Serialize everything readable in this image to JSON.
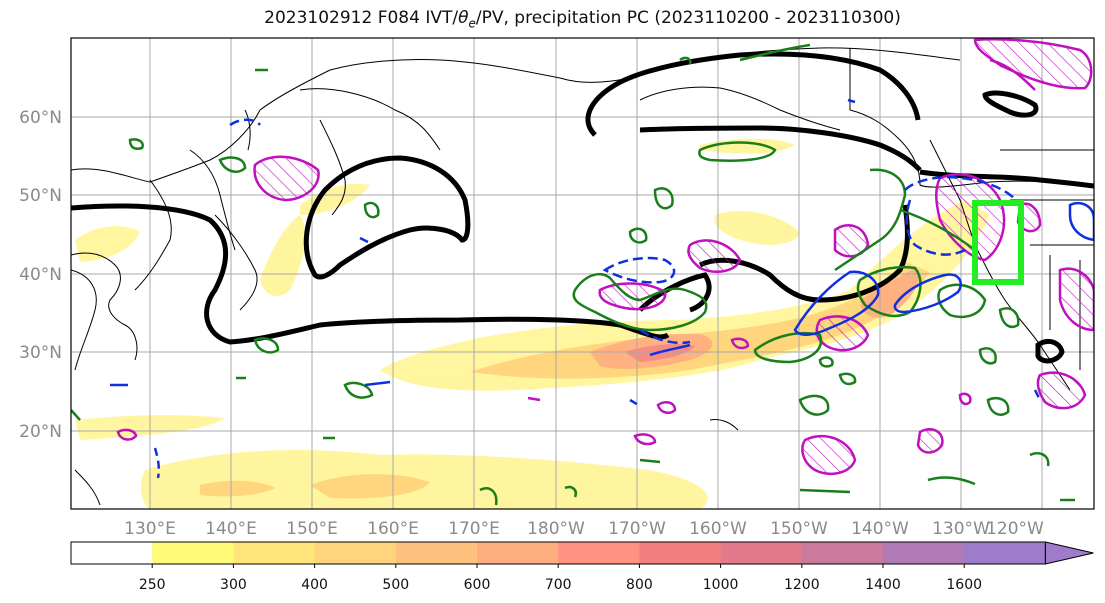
{
  "title": {
    "prefix": "2023102912 F084 IVT/",
    "theta": "θ",
    "theta_sub": "e",
    "suffix": "/PV, precipitation PC (2023110200 - 2023110300)"
  },
  "map": {
    "lat_labels": [
      "60°N",
      "50°N",
      "40°N",
      "30°N",
      "20°N"
    ],
    "lon_labels": [
      "130°E",
      "140°E",
      "150°E",
      "160°E",
      "170°E",
      "180°W",
      "170°W",
      "160°W",
      "150°W",
      "140°W",
      "130°W",
      "120°W"
    ],
    "colors": {
      "theta_e_contour": "#000000",
      "precip_contour": "#1a7f1a",
      "pv_contour": "#c010c0",
      "ivt_outline": "#1030e0",
      "highlight_box": "#22ee22",
      "coastline": "#000000",
      "gridline": "#a8a8a8"
    }
  },
  "colorbar": {
    "ticks": [
      "250",
      "300",
      "400",
      "500",
      "600",
      "700",
      "800",
      "1000",
      "1200",
      "1400",
      "1600"
    ],
    "colors": [
      "#ffffff",
      "#fffa78",
      "#ffe57a",
      "#ffd47c",
      "#ffc27e",
      "#ffae7f",
      "#ff9280",
      "#f47f80",
      "#e27a8b",
      "#cb7a9e",
      "#b07ab4",
      "#9f7cc9"
    ]
  }
}
